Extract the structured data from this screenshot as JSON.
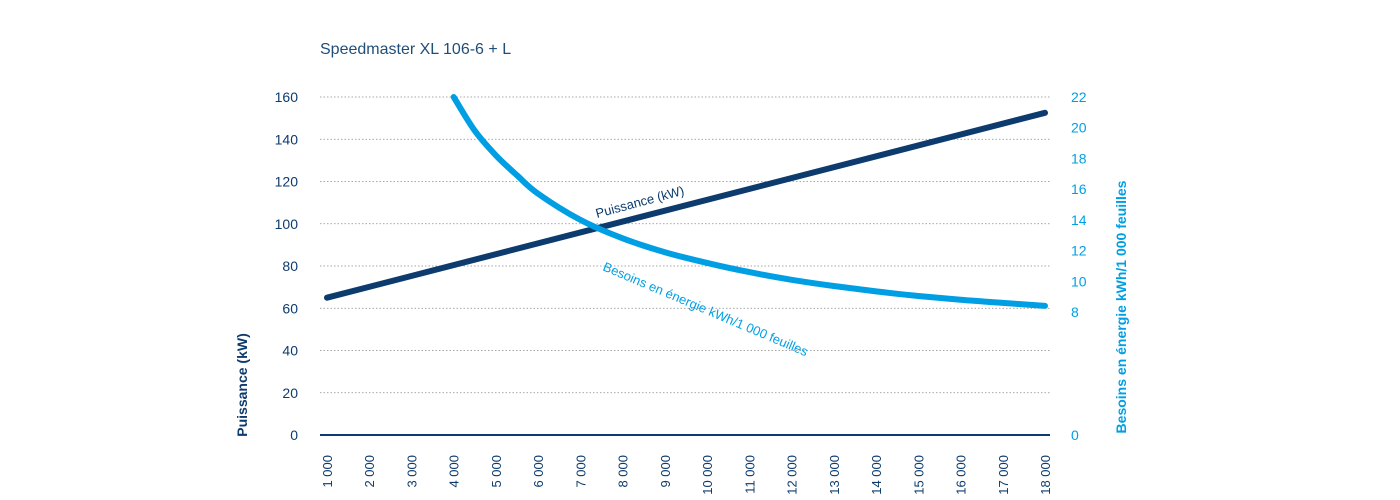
{
  "chart_data": {
    "type": "line",
    "title": "Speedmaster XL 106-6 + L",
    "xlabel": "",
    "x": [
      1000,
      2000,
      3000,
      4000,
      5000,
      6000,
      7000,
      8000,
      9000,
      10000,
      11000,
      12000,
      13000,
      14000,
      15000,
      16000,
      17000,
      18000
    ],
    "x_tick_labels": [
      "1 000",
      "2 000",
      "3 000",
      "4 000",
      "5 000",
      "6 000",
      "7 000",
      "8 000",
      "9 000",
      "10 000",
      "11 000",
      "12 000",
      "13 000",
      "14 000",
      "15 000",
      "16 000",
      "17 000",
      "18 000"
    ],
    "y_left": {
      "label": "Puissance (kW)",
      "range": [
        0,
        160
      ],
      "ticks": [
        0,
        20,
        40,
        60,
        80,
        100,
        120,
        140,
        160
      ],
      "color": "#0d3b6e"
    },
    "y_right": {
      "label": "Besoins en énergie kWh/1 000 feuilles",
      "range": [
        0,
        22
      ],
      "ticks": [
        0,
        8,
        10,
        12,
        14,
        16,
        18,
        20,
        22
      ],
      "color": "#009fe3"
    },
    "series": [
      {
        "name": "Puissance (kW)",
        "axis": "left",
        "color": "#0d3b6e",
        "x": [
          1000,
          18000
        ],
        "values": [
          65,
          152.5
        ]
      },
      {
        "name": "Besoins en énergie kWh/1 000 feuilles",
        "axis": "right",
        "color": "#009fe3",
        "x": [
          4000,
          4500,
          5000,
          5500,
          6000,
          7000,
          8000,
          9000,
          10000,
          11000,
          12000,
          13000,
          14000,
          15000,
          16000,
          17000,
          18000
        ],
        "values": [
          22,
          19.8,
          18.2,
          16.9,
          15.7,
          14.0,
          12.8,
          11.9,
          11.2,
          10.6,
          10.1,
          9.7,
          9.35,
          9.05,
          8.8,
          8.6,
          8.4
        ]
      }
    ],
    "grid": true
  }
}
